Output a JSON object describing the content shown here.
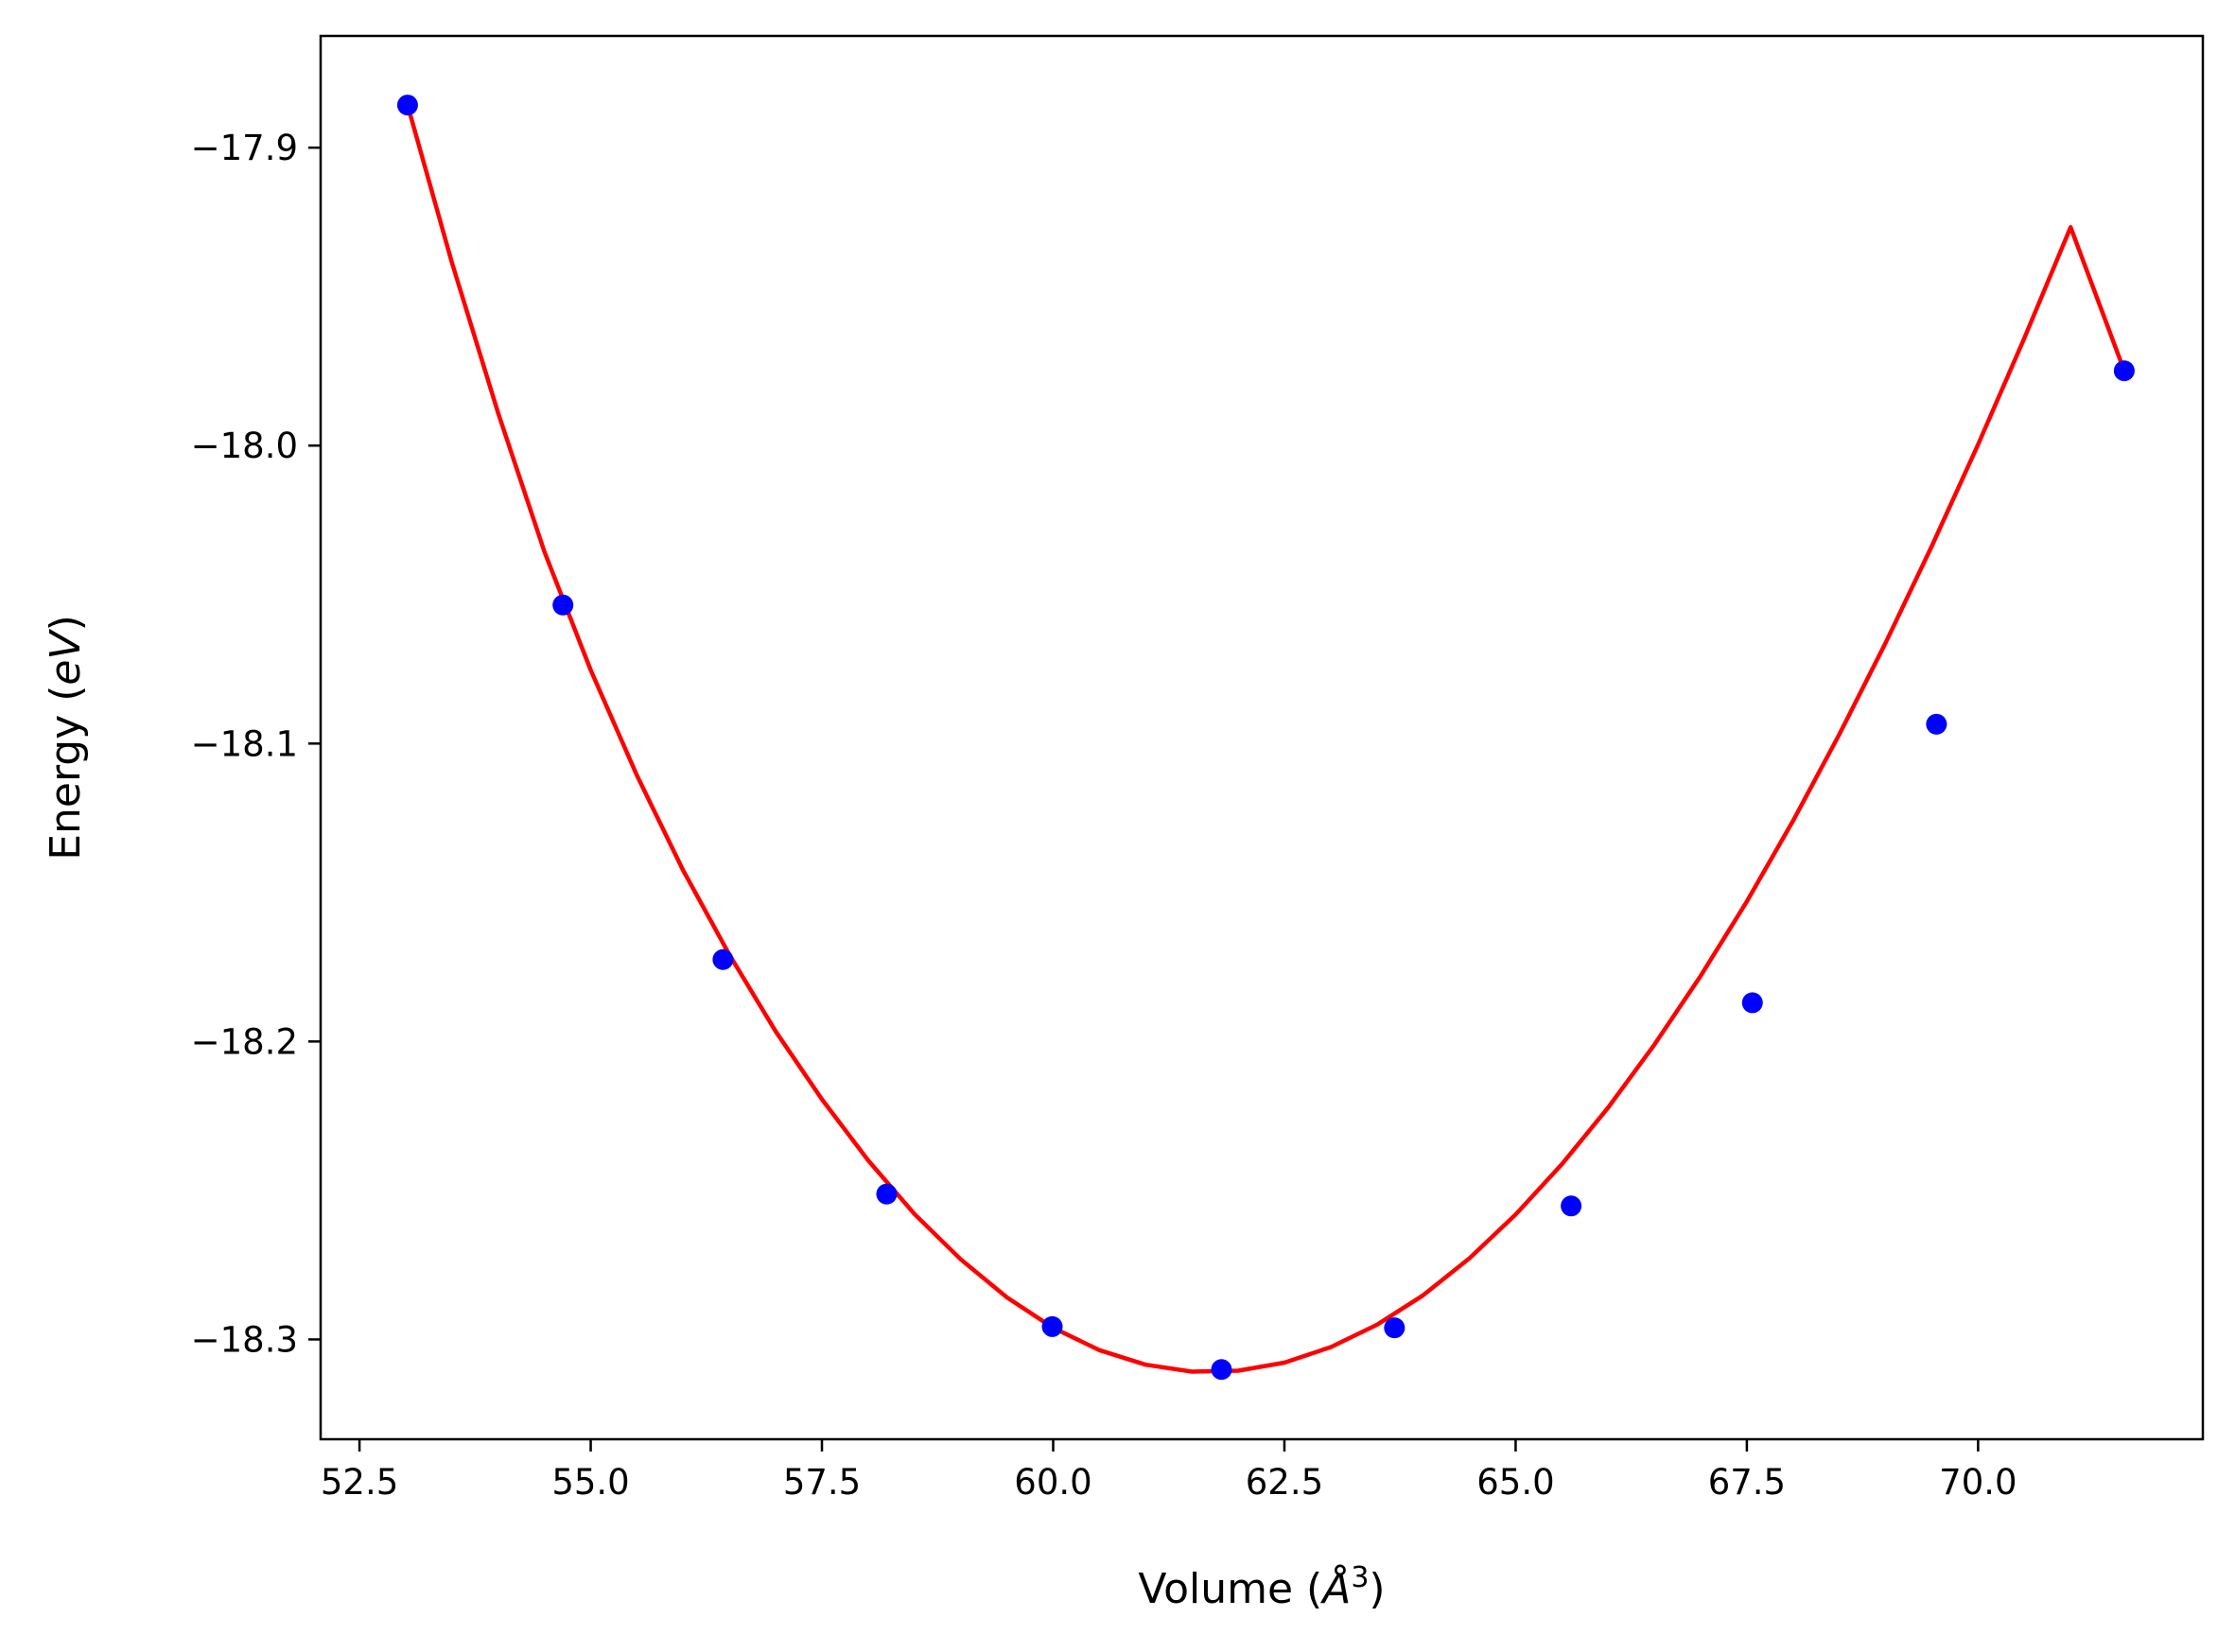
{
  "chart_data": {
    "type": "scatter",
    "title": "",
    "xlabel": "Volume",
    "xlabel_unit_symbol": "Å",
    "xlabel_unit_exponent": "3",
    "ylabel": "Energy",
    "ylabel_unit": "eV",
    "xlim": [
      52.08,
      72.43
    ],
    "ylim": [
      -18.3335,
      -17.8625
    ],
    "x_ticks": [
      52.5,
      55.0,
      57.5,
      60.0,
      62.5,
      65.0,
      67.5,
      70.0
    ],
    "x_tick_labels": [
      "52.5",
      "55.0",
      "57.5",
      "60.0",
      "62.5",
      "65.0",
      "67.5",
      "70.0"
    ],
    "y_ticks": [
      -17.9,
      -18.0,
      -18.1,
      -18.2,
      -18.3
    ],
    "y_tick_labels": [
      "−17.9",
      "−18.0",
      "−18.1",
      "−18.2",
      "−18.3"
    ],
    "grid": false,
    "series": [
      {
        "kind": "markers",
        "color": "#0000ff",
        "x": [
          53.02,
          54.7,
          56.43,
          58.2,
          59.99,
          61.82,
          63.69,
          65.6,
          67.56,
          69.55,
          71.58
        ],
        "y": [
          -17.8857,
          -18.0535,
          -18.1725,
          -18.2512,
          -18.2957,
          -18.3101,
          -18.2961,
          -18.2552,
          -18.187,
          -18.0935,
          -17.9749
        ]
      },
      {
        "kind": "fit-curve",
        "color": "#ff0000",
        "x": [
          53.02,
          53.5,
          54.0,
          54.5,
          55.0,
          55.5,
          56.0,
          56.5,
          57.0,
          57.5,
          58.0,
          58.5,
          59.0,
          59.5,
          60.0,
          60.5,
          61.0,
          61.5,
          62.0,
          62.5,
          63.0,
          63.5,
          64.0,
          64.5,
          65.0,
          65.5,
          66.0,
          66.5,
          67.0,
          67.5,
          68.0,
          68.5,
          69.0,
          69.5,
          70.0,
          70.5,
          71.0,
          71.58
        ],
        "y": [
          -17.8857,
          -17.9387,
          -17.9892,
          -18.0356,
          -18.0753,
          -18.1107,
          -18.1426,
          -18.1709,
          -18.1966,
          -18.2194,
          -18.2399,
          -18.2579,
          -18.2731,
          -18.2859,
          -18.2961,
          -18.3036,
          -18.3085,
          -18.3108,
          -18.3105,
          -18.3078,
          -18.3026,
          -18.2951,
          -18.2852,
          -18.2728,
          -18.2581,
          -18.2412,
          -18.2222,
          -18.2011,
          -18.178,
          -18.153,
          -18.1259,
          -18.0969,
          -18.0662,
          -18.0337,
          -17.9996,
          -17.9639,
          -17.9267,
          -17.9749
        ]
      }
    ]
  }
}
